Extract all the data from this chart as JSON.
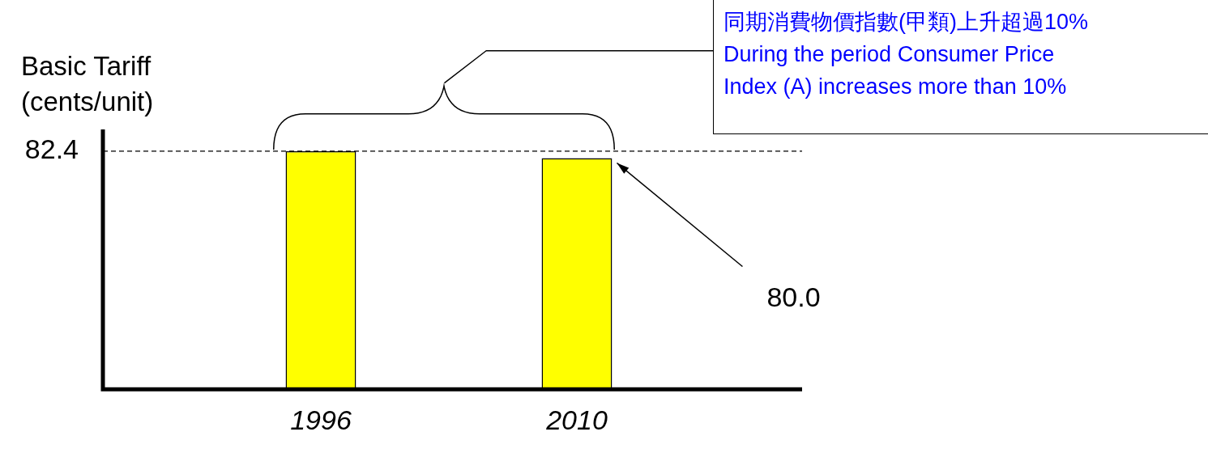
{
  "chart_data": {
    "type": "bar",
    "ylabel": "Basic Tariff (cents/unit)",
    "categories": [
      "1996",
      "2010"
    ],
    "values": [
      82.4,
      80.0
    ],
    "value_labels": [
      null,
      "80.0"
    ],
    "color": "#ffff00",
    "ref_lines": [
      {
        "axis": "y",
        "value": 82.4,
        "label": "82.4",
        "line_style": "dashed",
        "color": "#000000"
      }
    ],
    "annotations": [
      "同期消費物價指數(甲類)上升超過10%",
      "During the period Consumer Price Index (A) increases more than 10%"
    ]
  }
}
